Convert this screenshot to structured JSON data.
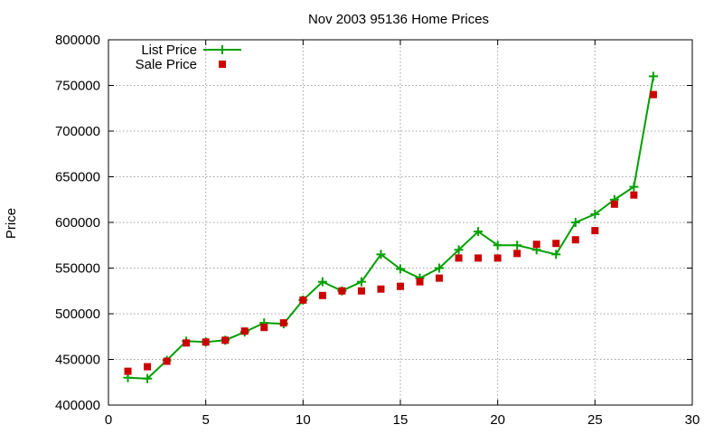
{
  "chart_data": {
    "type": "line",
    "title": "Nov 2003 95136 Home Prices",
    "xlabel": "",
    "ylabel": "Price",
    "xlim": [
      0,
      30
    ],
    "ylim": [
      400000,
      800000
    ],
    "x_ticks": [
      "0",
      "5",
      "10",
      "15",
      "20",
      "25",
      "30"
    ],
    "y_ticks": [
      "400000",
      "450000",
      "500000",
      "550000",
      "600000",
      "650000",
      "700000",
      "750000",
      "800000"
    ],
    "grid": true,
    "legend_position": "top-left",
    "x": [
      1,
      2,
      3,
      4,
      5,
      6,
      7,
      8,
      9,
      10,
      11,
      12,
      13,
      14,
      15,
      16,
      17,
      18,
      19,
      20,
      21,
      22,
      23,
      24,
      25,
      26,
      27,
      28
    ],
    "series": [
      {
        "name": "List Price",
        "style": "line-with-plus-markers",
        "color": "#00a000",
        "values": [
          430000,
          429000,
          449000,
          470000,
          469000,
          471000,
          480000,
          490000,
          489000,
          515000,
          535000,
          525000,
          535000,
          565000,
          549000,
          539000,
          550000,
          570000,
          590000,
          575000,
          575000,
          570000,
          565000,
          600000,
          609000,
          625000,
          639000,
          760000
        ]
      },
      {
        "name": "Sale Price",
        "style": "square-markers",
        "color": "#cc0000",
        "values": [
          437000,
          442000,
          448000,
          468000,
          469000,
          471000,
          481000,
          485000,
          490000,
          515000,
          520000,
          525000,
          525000,
          527000,
          530000,
          535000,
          539000,
          561000,
          561000,
          561000,
          566000,
          576000,
          577000,
          581000,
          591000,
          620000,
          630000,
          740000
        ]
      }
    ]
  }
}
